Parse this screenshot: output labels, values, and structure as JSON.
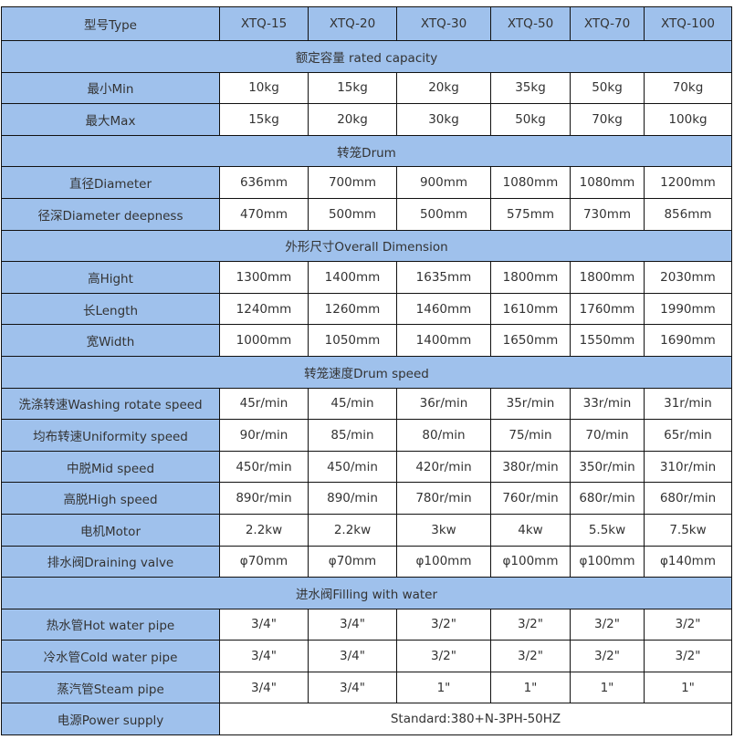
{
  "header": {
    "label": "型号Type",
    "models": [
      "XTQ-15",
      "XTQ-20",
      "XTQ-30",
      "XTQ-50",
      "XTQ-70",
      "XTQ-100"
    ]
  },
  "rows": [
    {
      "section": "额定容量 rated capacity"
    },
    {
      "label": "最小Min",
      "values": [
        "10kg",
        "15kg",
        "20kg",
        "35kg",
        "50kg",
        "70kg"
      ]
    },
    {
      "label": "最大Max",
      "values": [
        "15kg",
        "20kg",
        "30kg",
        "50kg",
        "70kg",
        "100kg"
      ]
    },
    {
      "section": "转笼Drum"
    },
    {
      "label": "直径Diameter",
      "values": [
        "636mm",
        "700mm",
        "900mm",
        "1080mm",
        "1080mm",
        "1200mm"
      ]
    },
    {
      "label": "径深Diameter deepness",
      "values": [
        "470mm",
        "500mm",
        "500mm",
        "575mm",
        "730mm",
        "856mm"
      ]
    },
    {
      "section": "外形尺寸Overall Dimension"
    },
    {
      "label": "高Hight",
      "values": [
        "1300mm",
        "1400mm",
        "1635mm",
        "1800mm",
        "1800mm",
        "2030mm"
      ]
    },
    {
      "label": "长Length",
      "values": [
        "1240mm",
        "1260mm",
        "1460mm",
        "1610mm",
        "1760mm",
        "1990mm"
      ]
    },
    {
      "label": "宽Width",
      "values": [
        "1000mm",
        "1050mm",
        "1400mm",
        "1650mm",
        "1550mm",
        "1690mm"
      ]
    },
    {
      "section": "转笼速度Drum speed"
    },
    {
      "label": "洗涤转速Washing rotate speed",
      "values": [
        "45r/min",
        "45/min",
        "36r/min",
        "35r/min",
        "33r/min",
        "31r/min"
      ]
    },
    {
      "label": "均布转速Uniformity speed",
      "values": [
        "90r/min",
        "85/min",
        "80/min",
        "75/min",
        "70/min",
        "65r/min"
      ]
    },
    {
      "label": "中脱Mid speed",
      "values": [
        "450r/min",
        "450/min",
        "420r/min",
        "380r/min",
        "350r/min",
        "310r/min"
      ]
    },
    {
      "label": "高脱High speed",
      "values": [
        "890r/min",
        "890/min",
        "780r/min",
        "760r/min",
        "680r/min",
        "680r/min"
      ]
    },
    {
      "label": "电机Motor",
      "values": [
        "2.2kw",
        "2.2kw",
        "3kw",
        "4kw",
        "5.5kw",
        "7.5kw"
      ]
    },
    {
      "label": "排水阀Draining valve",
      "values": [
        "φ70mm",
        "φ70mm",
        "φ100mm",
        "φ100mm",
        "φ100mm",
        "φ140mm"
      ]
    },
    {
      "section": "进水阀Filling with water"
    },
    {
      "label": "热水管Hot water pipe",
      "values": [
        "3/4\"",
        "3/4\"",
        "3/2\"",
        "3/2\"",
        "3/2\"",
        "3/2\""
      ]
    },
    {
      "label": "冷水管Cold water pipe",
      "values": [
        "3/4\"",
        "3/4\"",
        "3/2\"",
        "3/2\"",
        "3/2\"",
        "3/2\""
      ]
    },
    {
      "label": "蒸汽管Steam pipe",
      "values": [
        "3/4\"",
        "3/4\"",
        "1\"",
        "1\"",
        "1\"",
        "1\""
      ]
    },
    {
      "label": "电源Power supply",
      "span_value": "Standard:380+N-3PH-50HZ"
    }
  ],
  "colors": {
    "header_bg": "#9fc1ec",
    "border": "#111111",
    "text": "#333333"
  }
}
